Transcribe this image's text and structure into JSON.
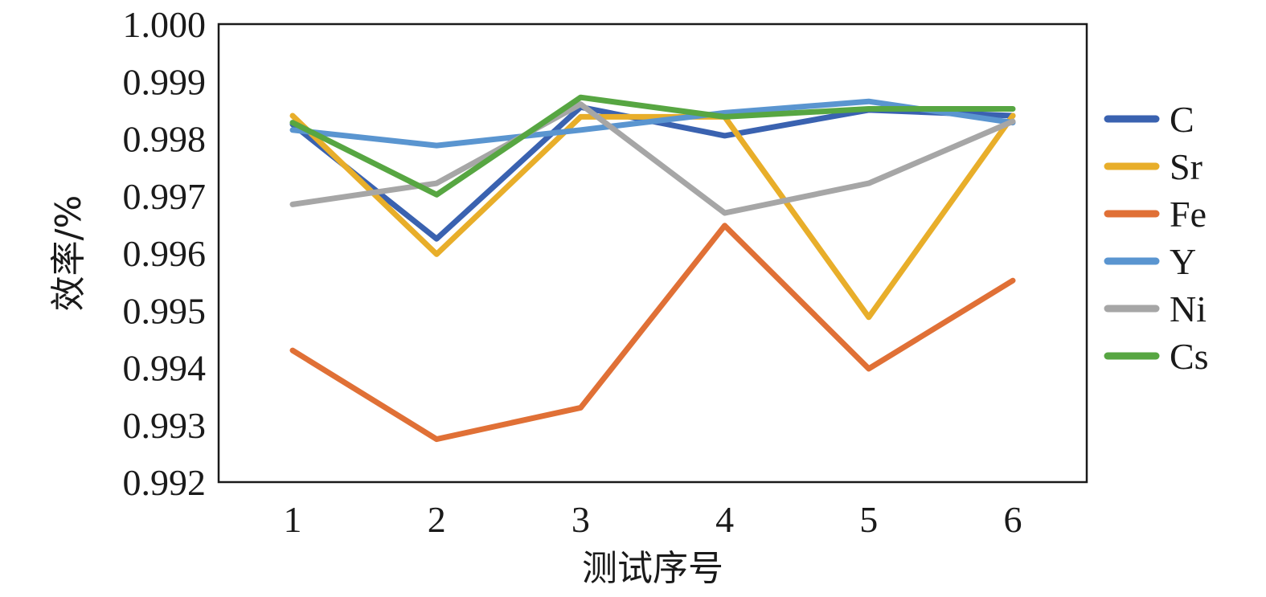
{
  "chart_data": {
    "type": "line",
    "title": "",
    "xlabel": "测试序号",
    "ylabel": "效率/%",
    "categories": [
      "1",
      "2",
      "3",
      "4",
      "5",
      "6"
    ],
    "yticks": [
      "0.992",
      "0.993",
      "0.994",
      "0.995",
      "0.996",
      "0.997",
      "0.998",
      "0.999",
      "1.000"
    ],
    "ylim": [
      0.992,
      1.0
    ],
    "grid": false,
    "legend_position": "right",
    "series": [
      {
        "name": "C",
        "color": "#3a62b0",
        "values": [
          0.99825,
          0.99625,
          0.99855,
          0.99805,
          0.9985,
          0.9984
        ]
      },
      {
        "name": "Sr",
        "color": "#e8ae2a",
        "values": [
          0.9984,
          0.99598,
          0.99838,
          0.99838,
          0.99488,
          0.9984
        ]
      },
      {
        "name": "Fe",
        "color": "#e07036",
        "values": [
          0.9943,
          0.99275,
          0.9933,
          0.99648,
          0.99398,
          0.99552
        ]
      },
      {
        "name": "Y",
        "color": "#5a95d0",
        "values": [
          0.99815,
          0.99788,
          0.99815,
          0.99845,
          0.99865,
          0.99828
        ]
      },
      {
        "name": "Ni",
        "color": "#a6a6a6",
        "values": [
          0.99685,
          0.99722,
          0.9986,
          0.9967,
          0.99722,
          0.9983
        ]
      },
      {
        "name": "Cs",
        "color": "#57a642",
        "values": [
          0.99828,
          0.99702,
          0.99872,
          0.99838,
          0.99852,
          0.99852
        ]
      }
    ]
  }
}
